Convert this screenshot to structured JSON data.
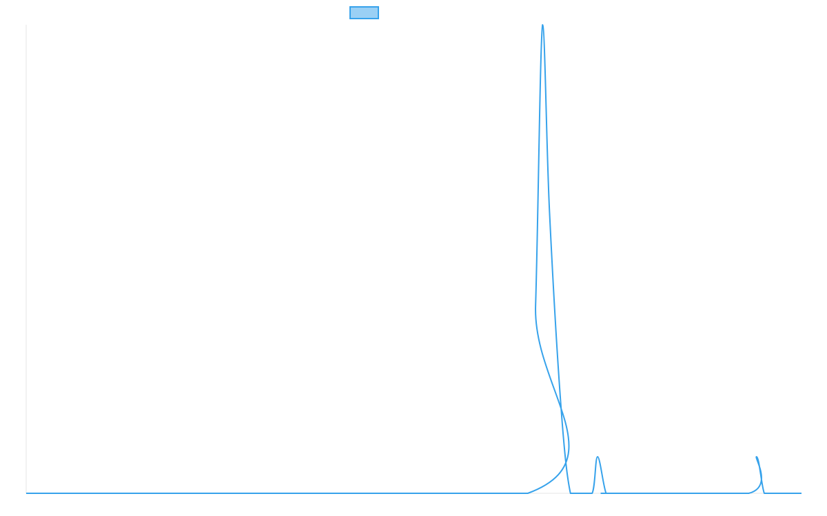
{
  "chart_data": {
    "type": "line",
    "title": "",
    "xlabel": "",
    "ylabel": "",
    "grid": false,
    "legend_placement": "top-center",
    "colors": {
      "line": "#36A2EB",
      "legend_fill": "#9AD0F5",
      "axis": "#e6e6e6"
    },
    "ylim": [
      0,
      1
    ],
    "xlim": [
      0,
      1
    ],
    "series": [
      {
        "name": "",
        "x": [
          0.0,
          0.647,
          0.657,
          0.666,
          0.675,
          0.69,
          0.702,
          0.713,
          0.73,
          0.737,
          0.748,
          0.758,
          0.932,
          0.942,
          0.952,
          0.962,
          1.0
        ],
        "values": [
          0.0,
          0.0,
          0.4,
          1.0,
          0.6,
          0.18,
          0.0,
          0.0,
          0.0,
          0.078,
          0.0,
          0.0,
          0.0,
          0.078,
          0.0,
          0.0,
          0.0
        ]
      }
    ]
  },
  "legend": {
    "label": ""
  }
}
